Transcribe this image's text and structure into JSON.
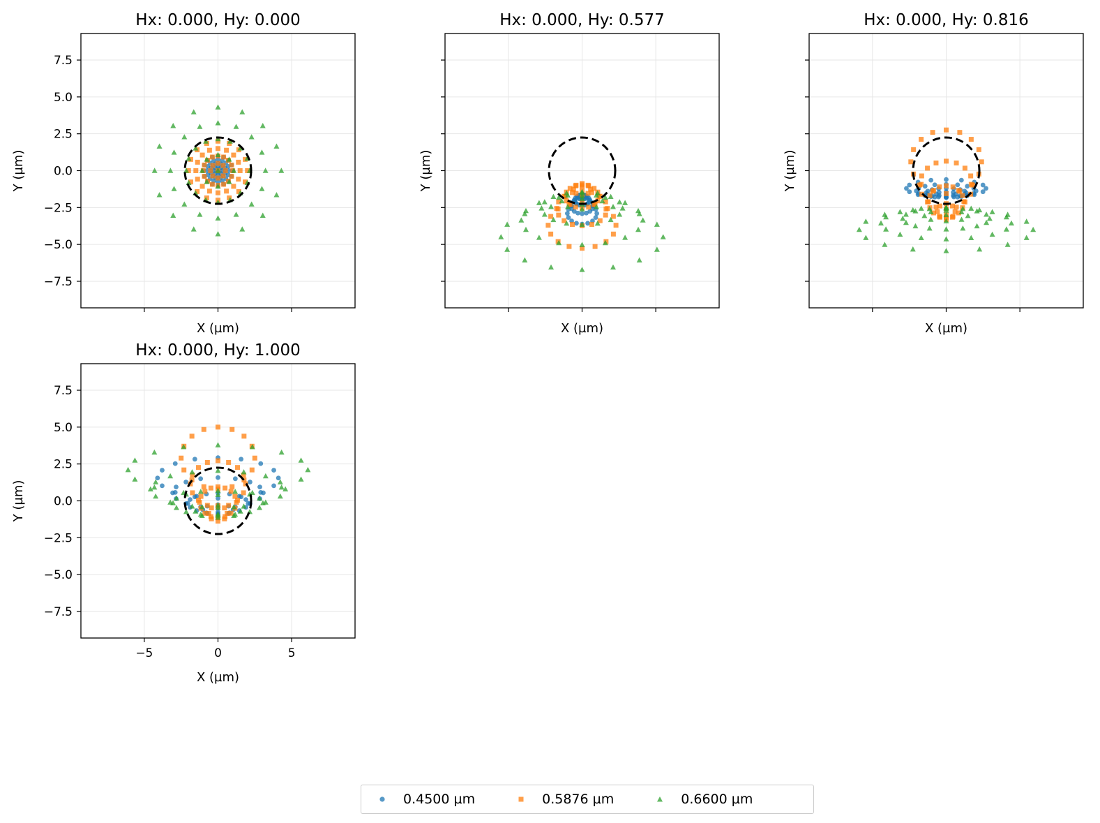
{
  "chart_data": {
    "type": "scatter",
    "panels": [
      {
        "title": "Hx: 0.000, Hy: 0.000",
        "hx": 0.0,
        "hy": 0.0
      },
      {
        "title": "Hx: 0.000, Hy: 0.577",
        "hx": 0.0,
        "hy": 0.577
      },
      {
        "title": "Hx: 0.000, Hy: 0.816",
        "hx": 0.0,
        "hy": 0.816
      },
      {
        "title": "Hx: 0.000, Hy: 1.000",
        "hx": 0.0,
        "hy": 1.0
      }
    ],
    "xlabel": "X (µm)",
    "ylabel": "Y (µm)",
    "xlim": [
      -9.3,
      9.3
    ],
    "ylim": [
      -9.3,
      9.3
    ],
    "xticks": [
      -5,
      0,
      5
    ],
    "xtick_labels": [
      "−5",
      "0",
      "5"
    ],
    "yticks": [
      7.5,
      5.0,
      2.5,
      0.0,
      -2.5,
      -5.0,
      -7.5
    ],
    "ytick_labels": [
      "7.5",
      "5.0",
      "2.5",
      "0.0",
      "−2.5",
      "−5.0",
      "−7.5"
    ],
    "grid": true,
    "airy_radius": 2.25,
    "legend_position": "bottom-center",
    "series": [
      {
        "name": "0.4500 µm",
        "marker": "circle",
        "color": "#1f77b4"
      },
      {
        "name": "0.5876 µm",
        "marker": "square",
        "color": "#ff7f0e"
      },
      {
        "name": "0.6600 µm",
        "marker": "triangle",
        "color": "#2ca02c"
      }
    ]
  }
}
